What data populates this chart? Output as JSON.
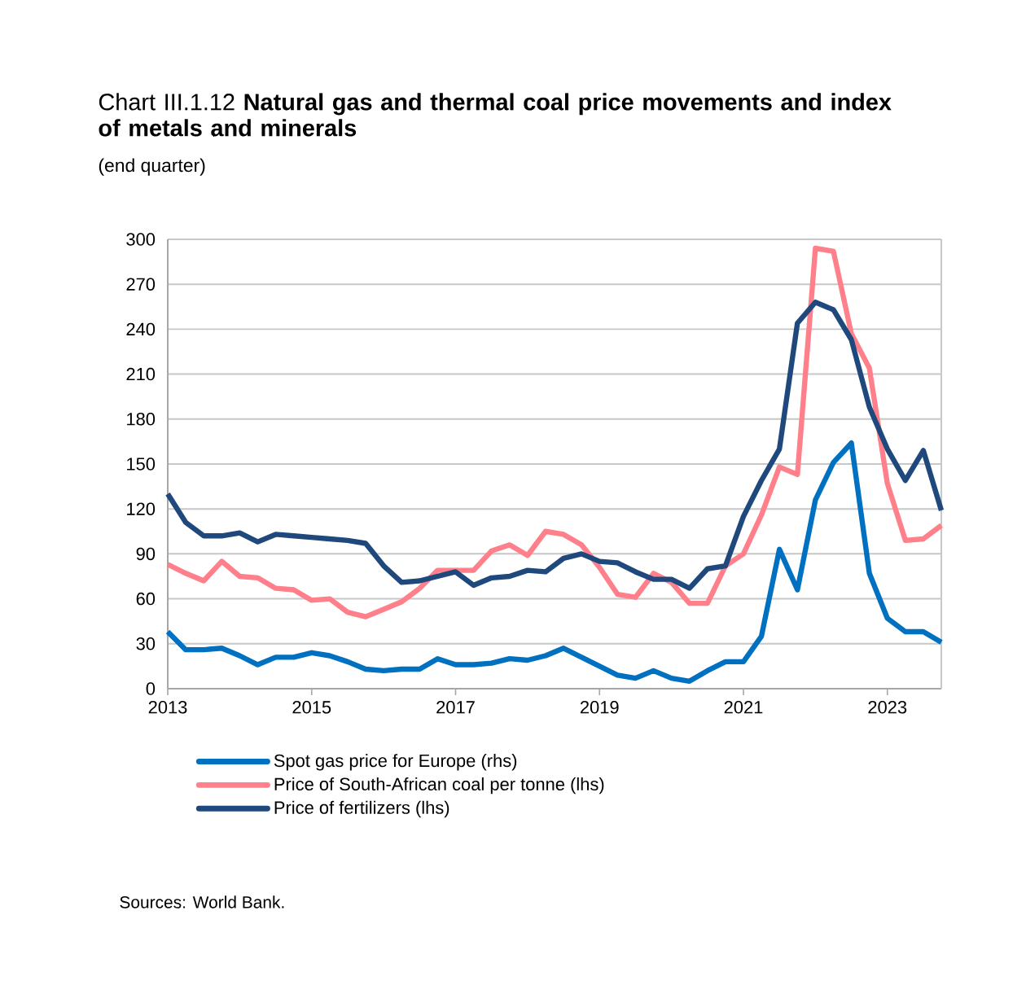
{
  "chart_data": {
    "type": "line",
    "title": "Chart III.1.12 **Natural gas and thermal coal price movements and index of metals and minerals**",
    "subtitle": "(end quarter)",
    "x": [
      2013,
      2013.25,
      2013.5,
      2013.75,
      2014,
      2014.25,
      2014.5,
      2014.75,
      2015,
      2015.25,
      2015.5,
      2015.75,
      2016,
      2016.25,
      2016.5,
      2016.75,
      2017,
      2017.25,
      2017.5,
      2017.75,
      2018,
      2018.25,
      2018.5,
      2018.75,
      2019,
      2019.25,
      2019.5,
      2019.75,
      2020,
      2020.25,
      2020.5,
      2020.75,
      2021,
      2021.25,
      2021.5,
      2021.75,
      2022,
      2022.25,
      2022.5,
      2022.75,
      2023,
      2023.25,
      2023.5,
      2023.75
    ],
    "series": [
      {
        "name": "Spot gas price for Europe (rhs)",
        "color": "#0070c0",
        "values": [
          38,
          26,
          26,
          27,
          22,
          16,
          21,
          21,
          24,
          22,
          18,
          13,
          12,
          13,
          13,
          20,
          16,
          16,
          17,
          20,
          19,
          22,
          27,
          21,
          15,
          9,
          7,
          12,
          7,
          5,
          12,
          18,
          18,
          35,
          93,
          66,
          126,
          151,
          164,
          77,
          47,
          38,
          38,
          31
        ]
      },
      {
        "name": "Price of South-African coal per tonne (lhs)",
        "color": "#ff7f8a",
        "values": [
          83,
          77,
          72,
          85,
          75,
          74,
          67,
          66,
          59,
          60,
          51,
          48,
          53,
          58,
          67,
          79,
          79,
          79,
          92,
          96,
          89,
          105,
          103,
          96,
          81,
          63,
          61,
          77,
          71,
          57,
          57,
          82,
          90,
          116,
          148,
          143,
          294,
          292,
          237,
          214,
          137,
          99,
          100,
          109
        ]
      },
      {
        "name": "Price of fertilizers (lhs)",
        "color": "#1f497d",
        "values": [
          130,
          111,
          102,
          102,
          104,
          98,
          103,
          102,
          101,
          100,
          99,
          97,
          82,
          71,
          72,
          75,
          78,
          69,
          74,
          75,
          79,
          78,
          87,
          90,
          85,
          84,
          78,
          73,
          73,
          67,
          80,
          82,
          115,
          139,
          160,
          244,
          258,
          253,
          233,
          188,
          160,
          139,
          159,
          119
        ]
      }
    ],
    "xlim": [
      2013,
      2023.75
    ],
    "ylim": [
      0,
      300
    ],
    "xticks": [
      2013,
      2015,
      2017,
      2019,
      2021,
      2023
    ],
    "yticks": [
      0,
      30,
      60,
      90,
      120,
      150,
      180,
      210,
      240,
      270,
      300
    ],
    "grid": "y",
    "legend": "bottom",
    "marker": "none",
    "line_style": "solid",
    "annotations": [
      "Sources: World Bank."
    ]
  }
}
